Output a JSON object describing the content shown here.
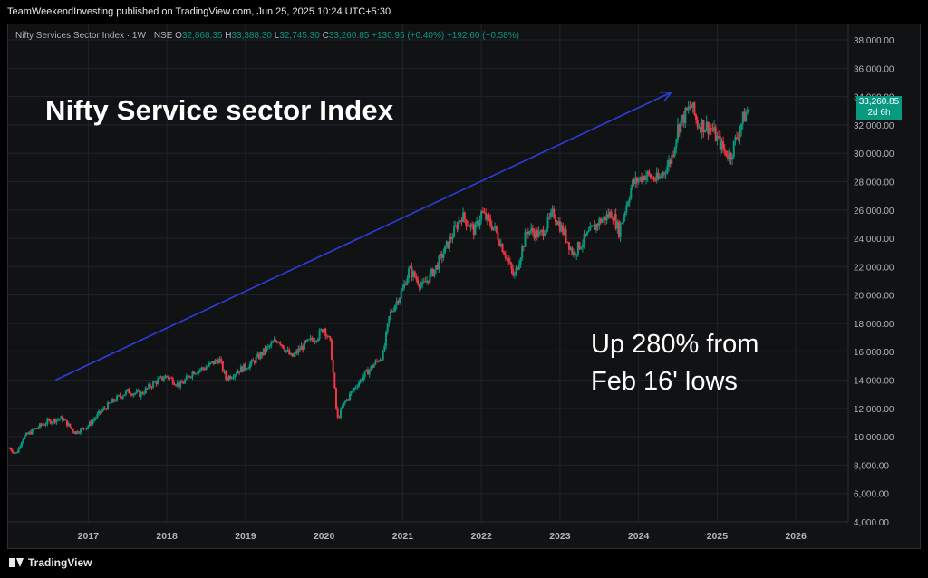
{
  "header": {
    "published": "TeamWeekendInvesting published on TradingView.com, Jun 25, 2025 10:24 UTC+5:30"
  },
  "legend": {
    "symbol": "Nifty Services Sector Index · 1W · NSE",
    "o_label": "O",
    "o": "32,868.35",
    "h_label": "H",
    "h": "33,388.30",
    "l_label": "L",
    "l": "32,745.30",
    "c_label": "C",
    "c": "33,260.85",
    "change": "+130.95 (+0.40%)",
    "change2": "+192.60 (+0.58%)"
  },
  "annotations": {
    "title": "Nifty Service sector Index",
    "note_line1": "Up 280% from",
    "note_line2": "Feb 16' lows"
  },
  "price_tag": {
    "price": "33,260.85",
    "countdown": "2d 6h"
  },
  "footer": {
    "brand": "TradingView"
  },
  "colors": {
    "up": "#089981",
    "down": "#f23645",
    "arrow": "#2d3dde",
    "background": "#111214",
    "grid": "#1e222d"
  },
  "chart_data": {
    "type": "candlestick",
    "title": "",
    "xlabel": "",
    "ylabel": "",
    "x_range": [
      "2016-01",
      "2026-09"
    ],
    "ylim": [
      4000,
      38000
    ],
    "y_ticks": [
      "4,000.00",
      "6,000.00",
      "8,000.00",
      "10,000.00",
      "12,000.00",
      "14,000.00",
      "16,000.00",
      "18,000.00",
      "20,000.00",
      "22,000.00",
      "24,000.00",
      "26,000.00",
      "28,000.00",
      "30,000.00",
      "32,000.00",
      "34,000.00",
      "36,000.00",
      "38,000.00"
    ],
    "x_ticks": [
      "2017",
      "2018",
      "2019",
      "2020",
      "2021",
      "2022",
      "2023",
      "2024",
      "2025",
      "2026"
    ],
    "grid": true,
    "series": [
      {
        "name": "",
        "points": [
          [
            "2016-01",
            9200
          ],
          [
            "2016-02",
            8800
          ],
          [
            "2016-03",
            9900
          ],
          [
            "2016-05",
            10600
          ],
          [
            "2016-07",
            11100
          ],
          [
            "2016-09",
            11300
          ],
          [
            "2016-11",
            10300
          ],
          [
            "2017-01",
            10800
          ],
          [
            "2017-03",
            11800
          ],
          [
            "2017-05",
            12600
          ],
          [
            "2017-07",
            13200
          ],
          [
            "2017-09",
            13000
          ],
          [
            "2017-11",
            13800
          ],
          [
            "2018-01",
            14300
          ],
          [
            "2018-03",
            13600
          ],
          [
            "2018-05",
            14600
          ],
          [
            "2018-07",
            14900
          ],
          [
            "2018-09",
            15500
          ],
          [
            "2018-10",
            14100
          ],
          [
            "2018-12",
            14700
          ],
          [
            "2019-02",
            15200
          ],
          [
            "2019-04",
            16100
          ],
          [
            "2019-06",
            16900
          ],
          [
            "2019-08",
            15600
          ],
          [
            "2019-10",
            16500
          ],
          [
            "2019-12",
            17100
          ],
          [
            "2020-01",
            17700
          ],
          [
            "2020-02",
            16500
          ],
          [
            "2020-03",
            11200
          ],
          [
            "2020-04",
            12300
          ],
          [
            "2020-06",
            13700
          ],
          [
            "2020-08",
            14800
          ],
          [
            "2020-10",
            15800
          ],
          [
            "2020-11",
            18600
          ],
          [
            "2021-01",
            20400
          ],
          [
            "2021-02",
            21800
          ],
          [
            "2021-04",
            20600
          ],
          [
            "2021-06",
            21900
          ],
          [
            "2021-08",
            23700
          ],
          [
            "2021-10",
            25600
          ],
          [
            "2021-12",
            24500
          ],
          [
            "2022-01",
            25800
          ],
          [
            "2022-03",
            24700
          ],
          [
            "2022-05",
            22500
          ],
          [
            "2022-06",
            21200
          ],
          [
            "2022-08",
            24600
          ],
          [
            "2022-10",
            24200
          ],
          [
            "2022-12",
            25800
          ],
          [
            "2023-02",
            24000
          ],
          [
            "2023-03",
            22900
          ],
          [
            "2023-05",
            24100
          ],
          [
            "2023-07",
            25200
          ],
          [
            "2023-09",
            25800
          ],
          [
            "2023-10",
            24500
          ],
          [
            "2023-12",
            27800
          ],
          [
            "2024-02",
            28500
          ],
          [
            "2024-04",
            28100
          ],
          [
            "2024-06",
            29600
          ],
          [
            "2024-07",
            31800
          ],
          [
            "2024-09",
            33400
          ],
          [
            "2024-10",
            32100
          ],
          [
            "2024-12",
            31800
          ],
          [
            "2025-02",
            30200
          ],
          [
            "2025-03",
            29800
          ],
          [
            "2025-04",
            31200
          ],
          [
            "2025-05",
            32500
          ],
          [
            "2025-06",
            33260.85
          ]
        ]
      }
    ],
    "trend_arrow": {
      "from": [
        "2016-08",
        14000
      ],
      "to": [
        "2024-06",
        34300
      ]
    }
  }
}
